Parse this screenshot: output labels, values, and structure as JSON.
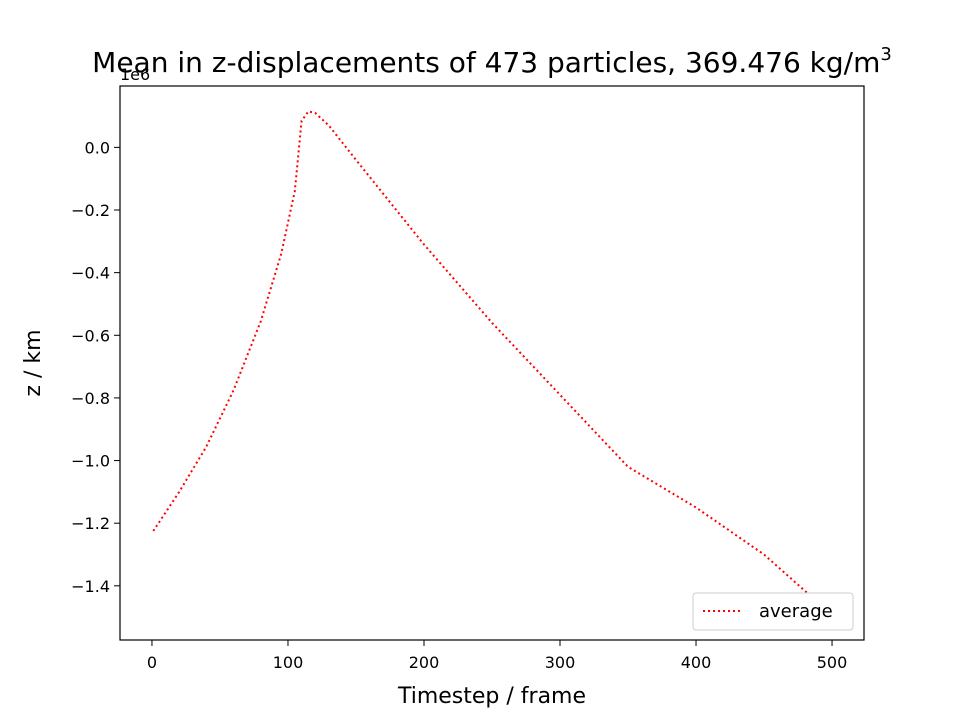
{
  "chart_data": {
    "type": "line",
    "title_main": "Mean in z-displacements of 473 particles, 369.476 kg/m",
    "title_sup": "3",
    "xlabel": "Timestep / frame",
    "ylabel": "z / km",
    "y_offset_label": "1e6",
    "xlim": [
      -23.5,
      523.5
    ],
    "ylim": [
      -1.573,
      0.196
    ],
    "x_ticks": [
      0,
      100,
      200,
      300,
      400,
      500
    ],
    "x_tick_labels": [
      "0",
      "100",
      "200",
      "300",
      "400",
      "500"
    ],
    "y_ticks": [
      0.0,
      -0.2,
      -0.4,
      -0.6,
      -0.8,
      -1.0,
      -1.2,
      -1.4
    ],
    "y_tick_labels": [
      "0.0",
      "−0.2",
      "−0.4",
      "−0.6",
      "−0.8",
      "−1.0",
      "−1.2",
      "−1.4"
    ],
    "grid": false,
    "legend_position": "lower-right",
    "series": [
      {
        "name": "average",
        "color": "#ff0000",
        "line_style": "dotted",
        "x": [
          1,
          20,
          40,
          60,
          80,
          95,
          105,
          110,
          115,
          120,
          130,
          150,
          200,
          250,
          300,
          350,
          400,
          450,
          485
        ],
        "y": [
          -1.225,
          -1.1,
          -0.955,
          -0.775,
          -0.555,
          -0.34,
          -0.14,
          0.085,
          0.115,
          0.11,
          0.07,
          -0.04,
          -0.31,
          -0.56,
          -0.79,
          -1.02,
          -1.15,
          -1.3,
          -1.435
        ]
      }
    ]
  }
}
